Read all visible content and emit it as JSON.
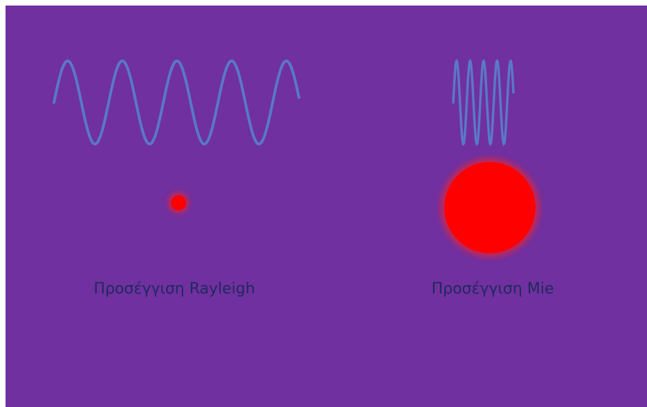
{
  "panels": [
    {
      "label": "Προσέγγιση Rayleigh"
    },
    {
      "label": "Προσέγγιση Mie"
    }
  ]
}
